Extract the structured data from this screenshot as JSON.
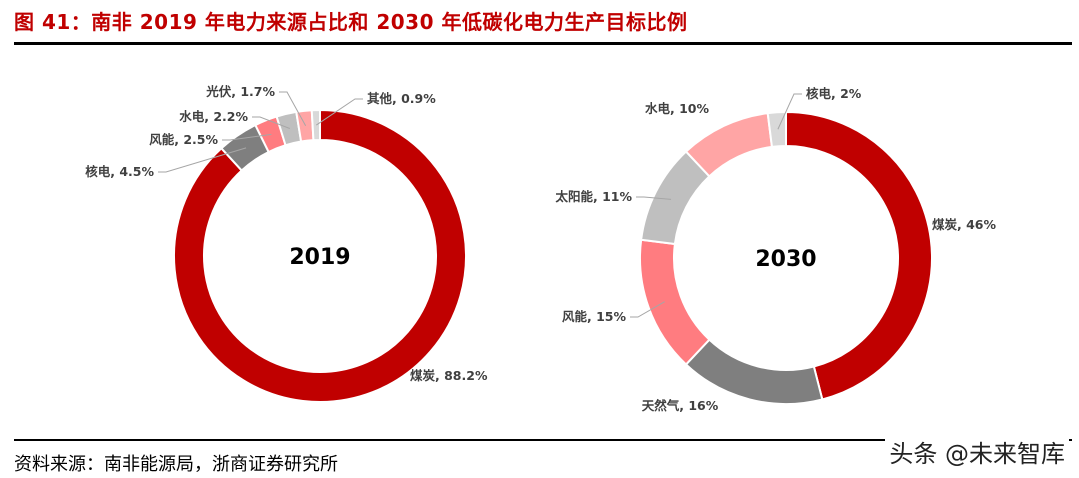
{
  "header": {
    "title": "图 41：南非 2019 年电力来源占比和 2030 年低碳化电力生产目标比例"
  },
  "footer": {
    "source": "资料来源：南非能源局，浙商证券研究所",
    "watermark": "头条 @未来智库"
  },
  "chart_data": [
    {
      "type": "pie",
      "donut": true,
      "center_label": "2019",
      "unit": "%",
      "slices": [
        {
          "name": "煤炭",
          "value": 88.2,
          "color": "#c00000"
        },
        {
          "name": "核电",
          "value": 4.5,
          "color": "#7f7f7f"
        },
        {
          "name": "风能",
          "value": 2.5,
          "color": "#ff7c80"
        },
        {
          "name": "水电",
          "value": 2.2,
          "color": "#bfbfbf"
        },
        {
          "name": "光伏",
          "value": 1.7,
          "color": "#ffa5a5"
        },
        {
          "name": "其他",
          "value": 0.9,
          "color": "#d9d9d9"
        }
      ]
    },
    {
      "type": "pie",
      "donut": true,
      "center_label": "2030",
      "unit": "%",
      "slices": [
        {
          "name": "煤炭",
          "value": 46,
          "color": "#c00000"
        },
        {
          "name": "天然气",
          "value": 16,
          "color": "#7f7f7f"
        },
        {
          "name": "风能",
          "value": 15,
          "color": "#ff7c80"
        },
        {
          "name": "太阳能",
          "value": 11,
          "color": "#bfbfbf"
        },
        {
          "name": "水电",
          "value": 10,
          "color": "#ffa5a5"
        },
        {
          "name": "核电",
          "value": 2,
          "color": "#d9d9d9"
        }
      ]
    }
  ]
}
